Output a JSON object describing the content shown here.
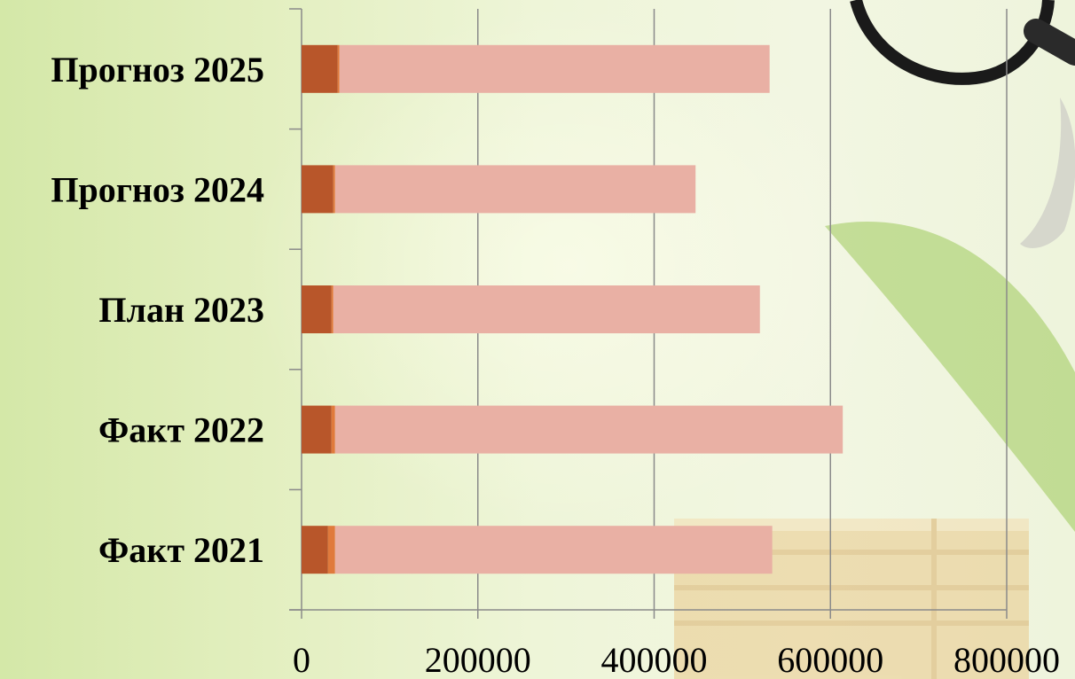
{
  "chart_data": {
    "type": "bar",
    "orientation": "horizontal",
    "stacked": true,
    "categories": [
      "Факт 2021",
      "Факт 2022",
      "План 2023",
      "Прогноз 2024",
      "Прогноз 2025"
    ],
    "series": [
      {
        "color": "#b8562a",
        "values": [
          30000,
          34000,
          34000,
          36000,
          41000
        ]
      },
      {
        "color": "#e07a3c",
        "values": [
          8000,
          4000,
          2000,
          2000,
          2000
        ]
      },
      {
        "color": "#e9b0a4",
        "values": [
          496000,
          576000,
          484000,
          409000,
          488000
        ]
      }
    ],
    "xlim": [
      0,
      800000
    ],
    "x_ticks": [
      "0",
      "200000",
      "400000",
      "600000",
      "800000"
    ],
    "grid": "vertical",
    "title": "",
    "xlabel": "",
    "ylabel": ""
  }
}
